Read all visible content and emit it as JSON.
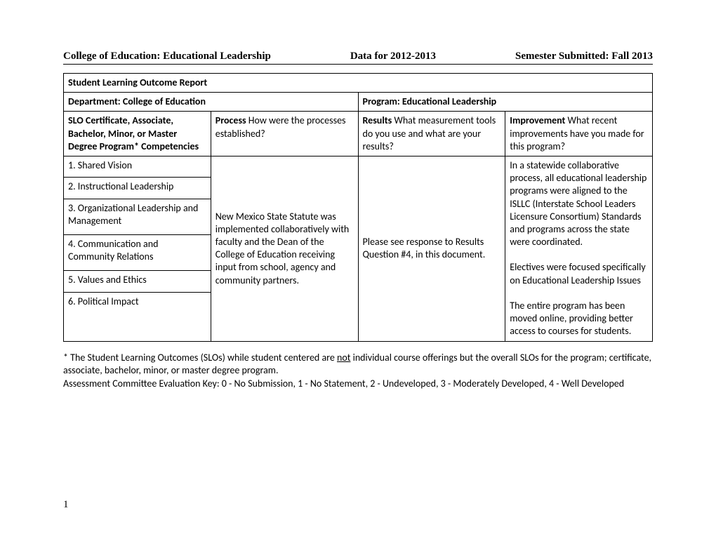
{
  "header": {
    "left": "College of Education: Educational Leadership",
    "center": "Data for 2012-2013",
    "right": "Semester Submitted: Fall 2013"
  },
  "table": {
    "row1": "Student Learning Outcome Report",
    "row2_left": "Department: College of Education",
    "row2_right": "Program: Educational Leadership",
    "headers": {
      "col1": {
        "label": "SLO  Certificate, Associate, Bachelor, Minor, or Master Degree Program* Competencies",
        "desc": ""
      },
      "col2": {
        "label": "Process",
        "desc": "                   How were the processes established?"
      },
      "col3": {
        "label": "Results",
        "desc": "                    What measurement tools do you use and what are your results?"
      },
      "col4": {
        "label": "Improvement",
        "desc": "                  What recent improvements have you made for this program?"
      }
    },
    "slo": {
      "r1": "1.  Shared Vision",
      "r2": "2.  Instructional Leadership",
      "r3": "3.  Organizational Leadership and Management",
      "r4": "4.  Communication and Community Relations",
      "r5": "5. Values and Ethics",
      "r6": "6. Political Impact"
    },
    "process_text": "New Mexico State Statute was implemented collaboratively with faculty and the Dean of the College of Education receiving input from school, agency and community partners.",
    "results_text": "Please see response to Results Question #4, in this document.",
    "improvement_text_1": "In a statewide collaborative process, all educational leadership programs were aligned to the ISLLC (Interstate School Leaders Licensure Consortium) Standards and programs across the state were coordinated.",
    "improvement_text_2": "Electives were focused specifically on Educational Leadership Issues",
    "improvement_text_3": "The entire program has been moved online, providing better access to courses for students."
  },
  "footnote": {
    "line1_a": "* The Student Learning Outcomes (SLOs) while student centered are ",
    "not": "not",
    "line1_b": " individual course offerings but the overall SLOs for the program; certificate, associate, bachelor, minor, or master degree program.",
    "line2": "Assessment Committee Evaluation Key:  0 - No Submission, 1 - No Statement, 2 - Undeveloped, 3 - Moderately Developed, 4 - Well Developed"
  },
  "page_number": "1"
}
